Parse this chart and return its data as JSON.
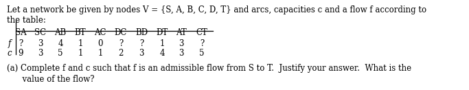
{
  "title_line1": "Let a network be given by nodes V = {S, A, B, C, D, T} and arcs, capacities c and a flow f according to",
  "title_line2": "the table:",
  "col_headers": [
    "SA",
    "SC",
    "AB",
    "BT",
    "AC",
    "DC",
    "BD",
    "DT",
    "AT",
    "CT"
  ],
  "row_f_label": "f",
  "row_c_label": "c",
  "row_f_values": [
    "?",
    "3",
    "4",
    "1",
    "0",
    "?",
    "?",
    "1",
    "3",
    "?"
  ],
  "row_c_values": [
    "9",
    "3",
    "5",
    "1",
    "1",
    "2",
    "3",
    "4",
    "3",
    "5"
  ],
  "footnote_line1": "(a) Complete f and c such that f is an admissible flow from S to T.  Justify your answer.  What is the",
  "footnote_line2": "      value of the flow?",
  "bg_color": "#ffffff",
  "text_color": "#000000",
  "font_size": 8.5,
  "fig_width": 6.83,
  "fig_height": 1.31,
  "dpi": 100
}
